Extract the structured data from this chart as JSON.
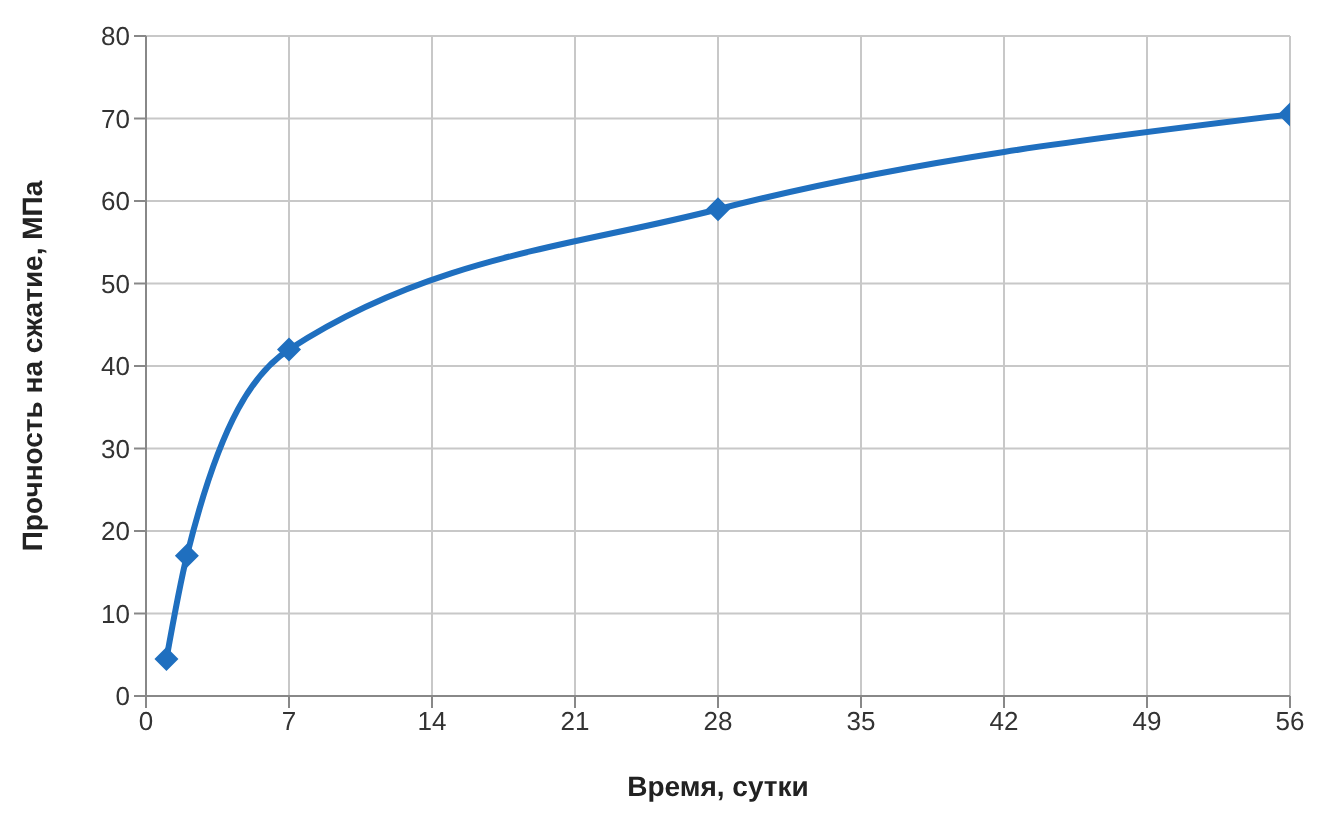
{
  "chart_data": {
    "type": "line",
    "xlabel": "Время, сутки",
    "ylabel": "Прочность на сжатие, МПа",
    "x": [
      1,
      2,
      7,
      28,
      56
    ],
    "series": [
      {
        "color": "#1f6fbf",
        "values": [
          4.5,
          17,
          42,
          59,
          70.5
        ]
      }
    ],
    "xlim": [
      0,
      56
    ],
    "xticks": [
      0,
      7,
      14,
      21,
      28,
      35,
      42,
      49,
      56
    ],
    "ylim": [
      0,
      80
    ],
    "yticks": [
      0,
      10,
      20,
      30,
      40,
      50,
      60,
      70,
      80
    ],
    "grid": true,
    "marker": "diamond",
    "line_style": "solid",
    "legend": false
  }
}
